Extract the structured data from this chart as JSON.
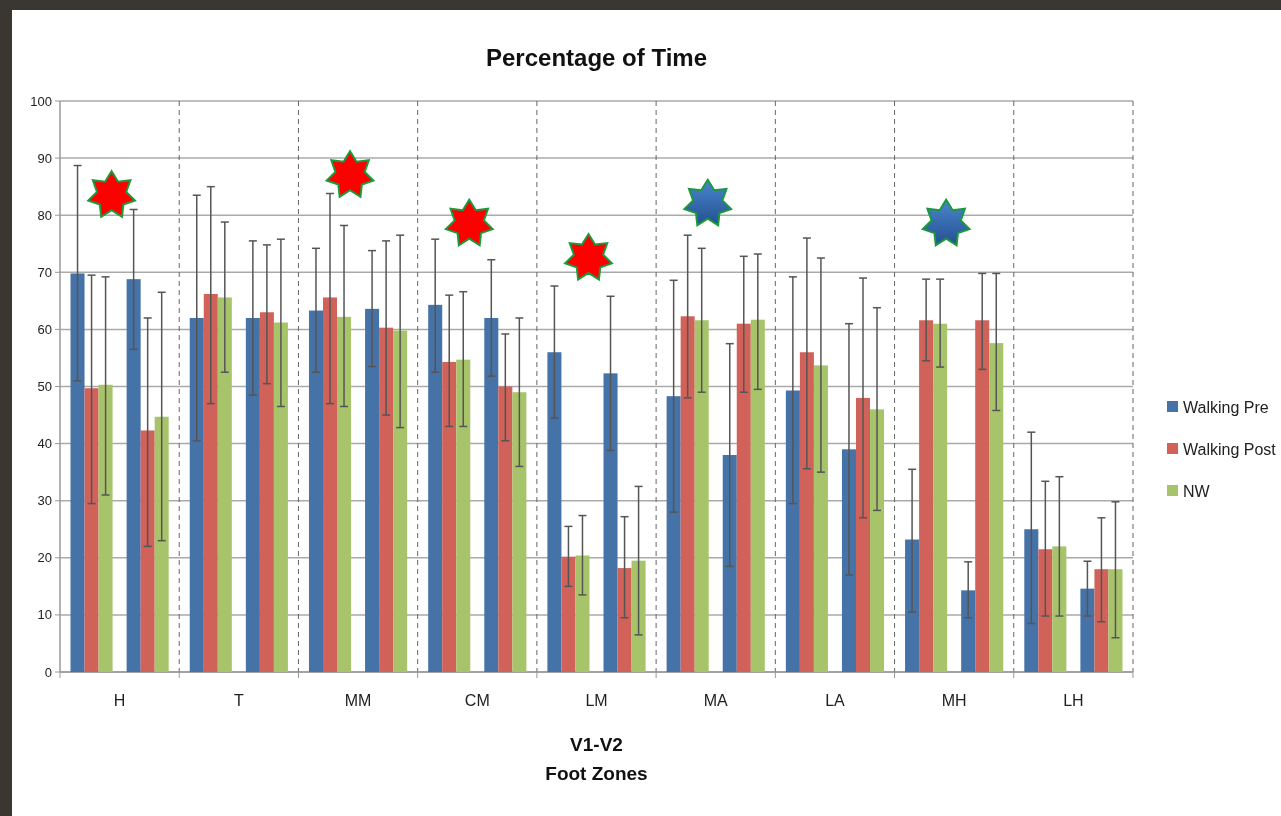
{
  "chart_data": {
    "type": "bar",
    "title": "Percentage of Time",
    "xlabel": "V1-V2\nFoot Zones",
    "categories": [
      "H",
      "T",
      "MM",
      "CM",
      "LM",
      "MA",
      "LA",
      "MH",
      "LH"
    ],
    "ylim": [
      0,
      100
    ],
    "yticks": [
      0,
      10,
      20,
      30,
      40,
      50,
      60,
      70,
      80,
      90,
      100
    ],
    "grid": true,
    "legend": "right",
    "series": [
      {
        "name": "Walking Pre",
        "color": "#4572a7",
        "values": [
          69.8,
          62,
          63.3,
          64.3,
          56,
          48.3,
          49.3,
          23.2,
          25
        ],
        "errors": [
          [
            51,
            88.7
          ],
          [
            40.5,
            83.5
          ],
          [
            52.5,
            74.2
          ],
          [
            52.5,
            75.8
          ],
          [
            44.5,
            67.6
          ],
          [
            28,
            68.6
          ],
          [
            29.5,
            69.2
          ],
          [
            10.5,
            35.5
          ],
          [
            8.5,
            42
          ]
        ]
      },
      {
        "name": "Walking Post",
        "color": "#d0625a",
        "values": [
          49.7,
          66.2,
          65.6,
          54.3,
          20.2,
          62.3,
          56,
          61.6,
          21.5
        ],
        "errors": [
          [
            29.5,
            69.5
          ],
          [
            47,
            85
          ],
          [
            47,
            83.8
          ],
          [
            43,
            66
          ],
          [
            15,
            25.5
          ],
          [
            48,
            76.5
          ],
          [
            35.6,
            76
          ],
          [
            54.5,
            68.8
          ],
          [
            9.8,
            33.4
          ]
        ]
      },
      {
        "name": "NW",
        "color": "#a8c46b",
        "values": [
          50.3,
          65.6,
          62.2,
          54.7,
          20.4,
          61.6,
          53.7,
          61,
          22
        ],
        "errors": [
          [
            31,
            69.2
          ],
          [
            52.5,
            78.8
          ],
          [
            46.5,
            78.2
          ],
          [
            43,
            66.6
          ],
          [
            13.5,
            27.4
          ],
          [
            49,
            74.2
          ],
          [
            35,
            72.5
          ],
          [
            53.4,
            68.8
          ],
          [
            9.8,
            34.2
          ]
        ]
      },
      {
        "color": "#4572a7",
        "values": [
          68.8,
          62,
          63.6,
          62,
          52.3,
          38,
          39,
          14.3,
          14.6
        ],
        "errors": [
          [
            56.5,
            81
          ],
          [
            48.5,
            75.5
          ],
          [
            53.5,
            73.8
          ],
          [
            51.8,
            72.2
          ],
          [
            38.8,
            65.8
          ],
          [
            18.5,
            57.5
          ],
          [
            17,
            61
          ],
          [
            9.5,
            19.3
          ],
          [
            9.8,
            19.4
          ]
        ]
      },
      {
        "color": "#d0625a",
        "values": [
          42.3,
          63,
          60.3,
          50,
          18.2,
          61,
          48,
          61.6,
          18
        ],
        "errors": [
          [
            22,
            62
          ],
          [
            50.5,
            74.8
          ],
          [
            45,
            75.5
          ],
          [
            40.5,
            59.2
          ],
          [
            9.5,
            27.2
          ],
          [
            49,
            72.8
          ],
          [
            27,
            69
          ],
          [
            53,
            69.8
          ],
          [
            8.8,
            27
          ]
        ]
      },
      {
        "color": "#a8c46b",
        "values": [
          44.7,
          61.2,
          59.8,
          49,
          19.5,
          61.7,
          46,
          57.6,
          18
        ],
        "errors": [
          [
            23,
            66.5
          ],
          [
            46.5,
            75.8
          ],
          [
            42.8,
            76.5
          ],
          [
            36,
            62
          ],
          [
            6.5,
            32.5
          ],
          [
            49.5,
            73.2
          ],
          [
            28.3,
            63.8
          ],
          [
            45.8,
            69.8
          ],
          [
            6,
            29.8
          ]
        ]
      }
    ]
  }
}
